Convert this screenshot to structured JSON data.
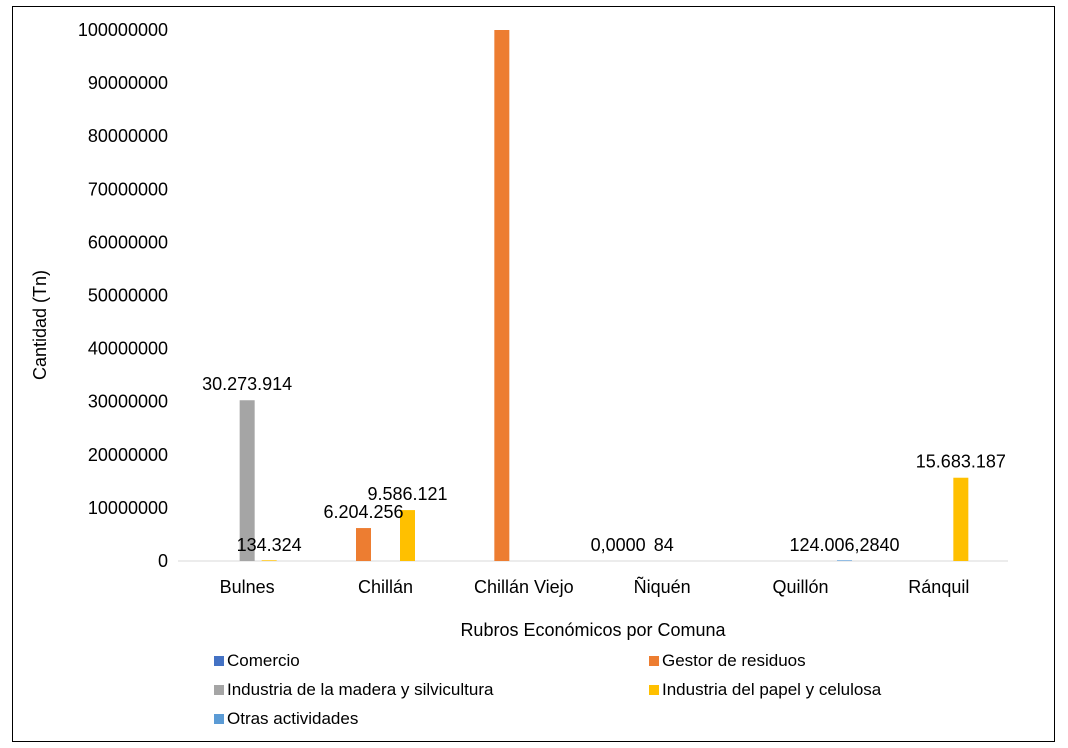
{
  "chart_data": {
    "type": "bar",
    "xlabel": "Rubros Económicos por Comuna",
    "ylabel": "Cantidad (Tn)",
    "ylim": [
      0,
      100000000
    ],
    "yticks": [
      "0",
      "10000000",
      "20000000",
      "30000000",
      "40000000",
      "50000000",
      "60000000",
      "70000000",
      "80000000",
      "90000000",
      "100000000"
    ],
    "categories": [
      "Bulnes",
      "Chillán",
      "Chillán Viejo",
      "Ñiquén",
      "Quillón",
      "Ránquil"
    ],
    "grid": false,
    "legend_position": "bottom",
    "series": [
      {
        "name": "Comercio",
        "color": "#4472C4",
        "values": [
          0,
          0,
          0,
          0,
          0,
          0
        ]
      },
      {
        "name": "Gestor de residuos",
        "color": "#ED7D31",
        "values": [
          0,
          6204256,
          100000000,
          0,
          0,
          0
        ]
      },
      {
        "name": "Industria de la madera y silvicultura",
        "color": "#A5A5A5",
        "values": [
          30273914,
          0,
          0,
          0,
          0,
          0
        ]
      },
      {
        "name": "Industria del papel y celulosa",
        "color": "#FFC000",
        "values": [
          134324,
          9586121,
          0,
          0,
          0,
          15683187
        ]
      },
      {
        "name": "Otras actividades",
        "color": "#5B9BD5",
        "values": [
          0,
          0,
          0,
          84,
          124006,
          0
        ]
      }
    ],
    "data_labels": [
      {
        "text": "134.324",
        "category": "Bulnes",
        "series": "Industria del papel y celulosa"
      },
      {
        "text": "30.273.914",
        "category": "Bulnes",
        "series": "Industria de la madera y silvicultura"
      },
      {
        "text": "6.204.256",
        "category": "Chillán",
        "series": "Gestor de residuos"
      },
      {
        "text": "9.586.121",
        "category": "Chillán",
        "series": "Industria del papel y celulosa"
      },
      {
        "text": "0,0000",
        "category": "Ñiquén",
        "series": "Comercio"
      },
      {
        "text": "84",
        "category": "Ñiquén",
        "series": "Otras actividades"
      },
      {
        "text": "124.006,2840",
        "category": "Quillón",
        "series": "Otras actividades"
      },
      {
        "text": "15.683.187",
        "category": "Ránquil",
        "series": "Industria del papel y celulosa"
      }
    ]
  }
}
